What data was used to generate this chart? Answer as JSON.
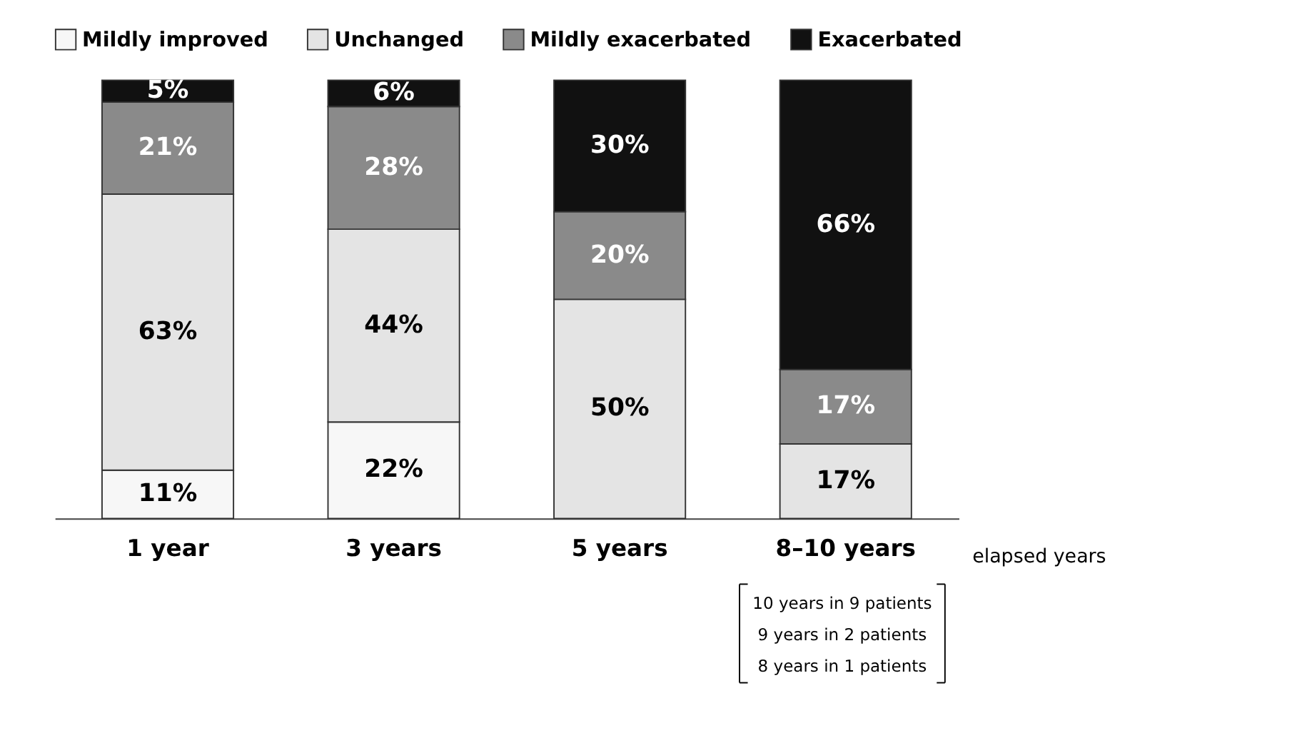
{
  "chart_data": {
    "type": "bar",
    "stacked": true,
    "categories": [
      "1 year",
      "3 years",
      "5 years",
      "8–10 years"
    ],
    "series": [
      {
        "name": "Mildly improved",
        "color": "#f7f7f7",
        "values": [
          11,
          22,
          0,
          0
        ],
        "value_labels": [
          "11%",
          "22%",
          null,
          null
        ]
      },
      {
        "name": "Unchanged",
        "color": "#e4e4e4",
        "values": [
          63,
          44,
          50,
          17
        ],
        "value_labels": [
          "63%",
          "44%",
          "50%",
          "17%"
        ]
      },
      {
        "name": "Mildly exacerbated",
        "color": "#8a8a8a",
        "values": [
          21,
          28,
          20,
          17
        ],
        "value_labels": [
          "21%",
          "28%",
          "20%",
          "17%"
        ]
      },
      {
        "name": "Exacerbated",
        "color": "#111111",
        "values": [
          5,
          6,
          30,
          66
        ],
        "value_labels": [
          "5%",
          "6%",
          "30%",
          "66%"
        ]
      }
    ],
    "annotations": [
      "elapsed years",
      "10 years in 9 patients",
      "9 years in 2 patients",
      "8 years in 1 patients"
    ],
    "legend": "top",
    "grid": false,
    "tick_labels": "x"
  }
}
